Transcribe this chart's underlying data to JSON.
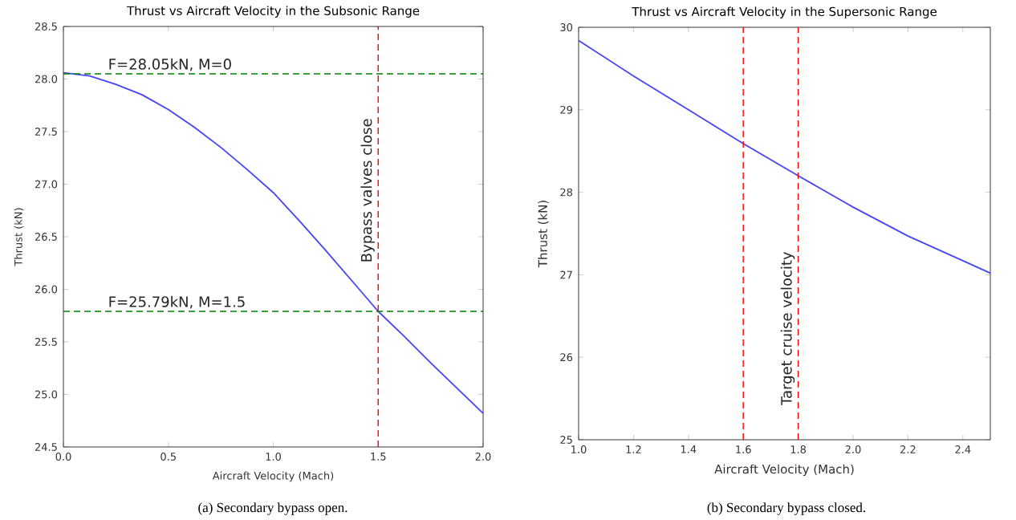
{
  "chart_data": [
    {
      "type": "line",
      "title": "Thrust vs Aircraft Velocity in the Subsonic Range",
      "xlabel": "Aircraft Velocity (Mach)",
      "ylabel": "Thrust (kN)",
      "x": [
        0,
        0.125,
        0.25,
        0.375,
        0.5,
        0.625,
        0.75,
        0.875,
        1.0,
        1.125,
        1.25,
        1.375,
        1.5,
        1.625,
        1.75,
        1.875,
        2.0
      ],
      "series": [
        {
          "color": "#4444ff",
          "values": [
            28.06,
            28.03,
            27.95,
            27.85,
            27.71,
            27.54,
            27.35,
            27.14,
            26.92,
            26.65,
            26.37,
            26.08,
            25.79,
            25.55,
            25.3,
            25.06,
            24.82
          ]
        }
      ],
      "xlim": [
        0,
        2.0
      ],
      "ylim": [
        24.5,
        28.5
      ],
      "xticks": [
        {
          "value": 0,
          "label": "0.0"
        },
        0.5,
        {
          "value": 1.0,
          "label": "1.0"
        },
        1.5,
        {
          "value": 2.0,
          "label": "2.0"
        }
      ],
      "yticks": [
        24.5,
        {
          "value": 25,
          "label": "25.0"
        },
        25.5,
        {
          "value": 26,
          "label": "26.0"
        },
        26.5,
        {
          "value": 27,
          "label": "27.0"
        },
        27.5,
        {
          "value": 28,
          "label": "28.0"
        },
        28.5
      ],
      "ref_lines": [
        {
          "axis": "y",
          "value": 28.05,
          "label": "F=28.05kN, M=0",
          "color": "#008000",
          "line_style": "dashed"
        },
        {
          "axis": "y",
          "value": 25.79,
          "label": "F=25.79kN, M=1.5",
          "color": "#008000",
          "line_style": "dashed"
        },
        {
          "axis": "x",
          "value": 1.5,
          "label": "Bypass valves close",
          "color": "#ff0000",
          "line_style": "dashed"
        }
      ],
      "annotations": [
        "(a) Secondary bypass open."
      ]
    },
    {
      "type": "line",
      "title": "Thrust vs Aircraft Velocity in the Supersonic Range",
      "xlabel": "Aircraft Velocity (Mach)",
      "ylabel": "Thrust (kN)",
      "x": [
        1.0,
        1.2,
        1.4,
        1.6,
        1.8,
        2.0,
        2.2,
        2.4,
        2.5
      ],
      "series": [
        {
          "color": "#4444ff",
          "values": [
            29.84,
            29.41,
            29.0,
            28.59,
            28.2,
            27.82,
            27.47,
            27.17,
            27.02
          ]
        }
      ],
      "xlim": [
        1.0,
        2.5
      ],
      "ylim": [
        25,
        30
      ],
      "xticks": [
        {
          "value": 1.0,
          "label": "1.0"
        },
        1.2,
        1.4,
        1.6,
        1.8,
        {
          "value": 2.0,
          "label": "2.0"
        },
        2.2,
        2.4
      ],
      "yticks": [
        25,
        26,
        27,
        28,
        29,
        30
      ],
      "ref_lines": [
        {
          "axis": "x",
          "value": 1.6,
          "color": "#ff0000",
          "line_style": "dashed"
        },
        {
          "axis": "x",
          "value": 1.8,
          "label": "Target cruise velocity",
          "color": "#ff0000",
          "line_style": "dashed"
        }
      ],
      "annotations": [
        "(b) Secondary bypass closed."
      ]
    }
  ]
}
